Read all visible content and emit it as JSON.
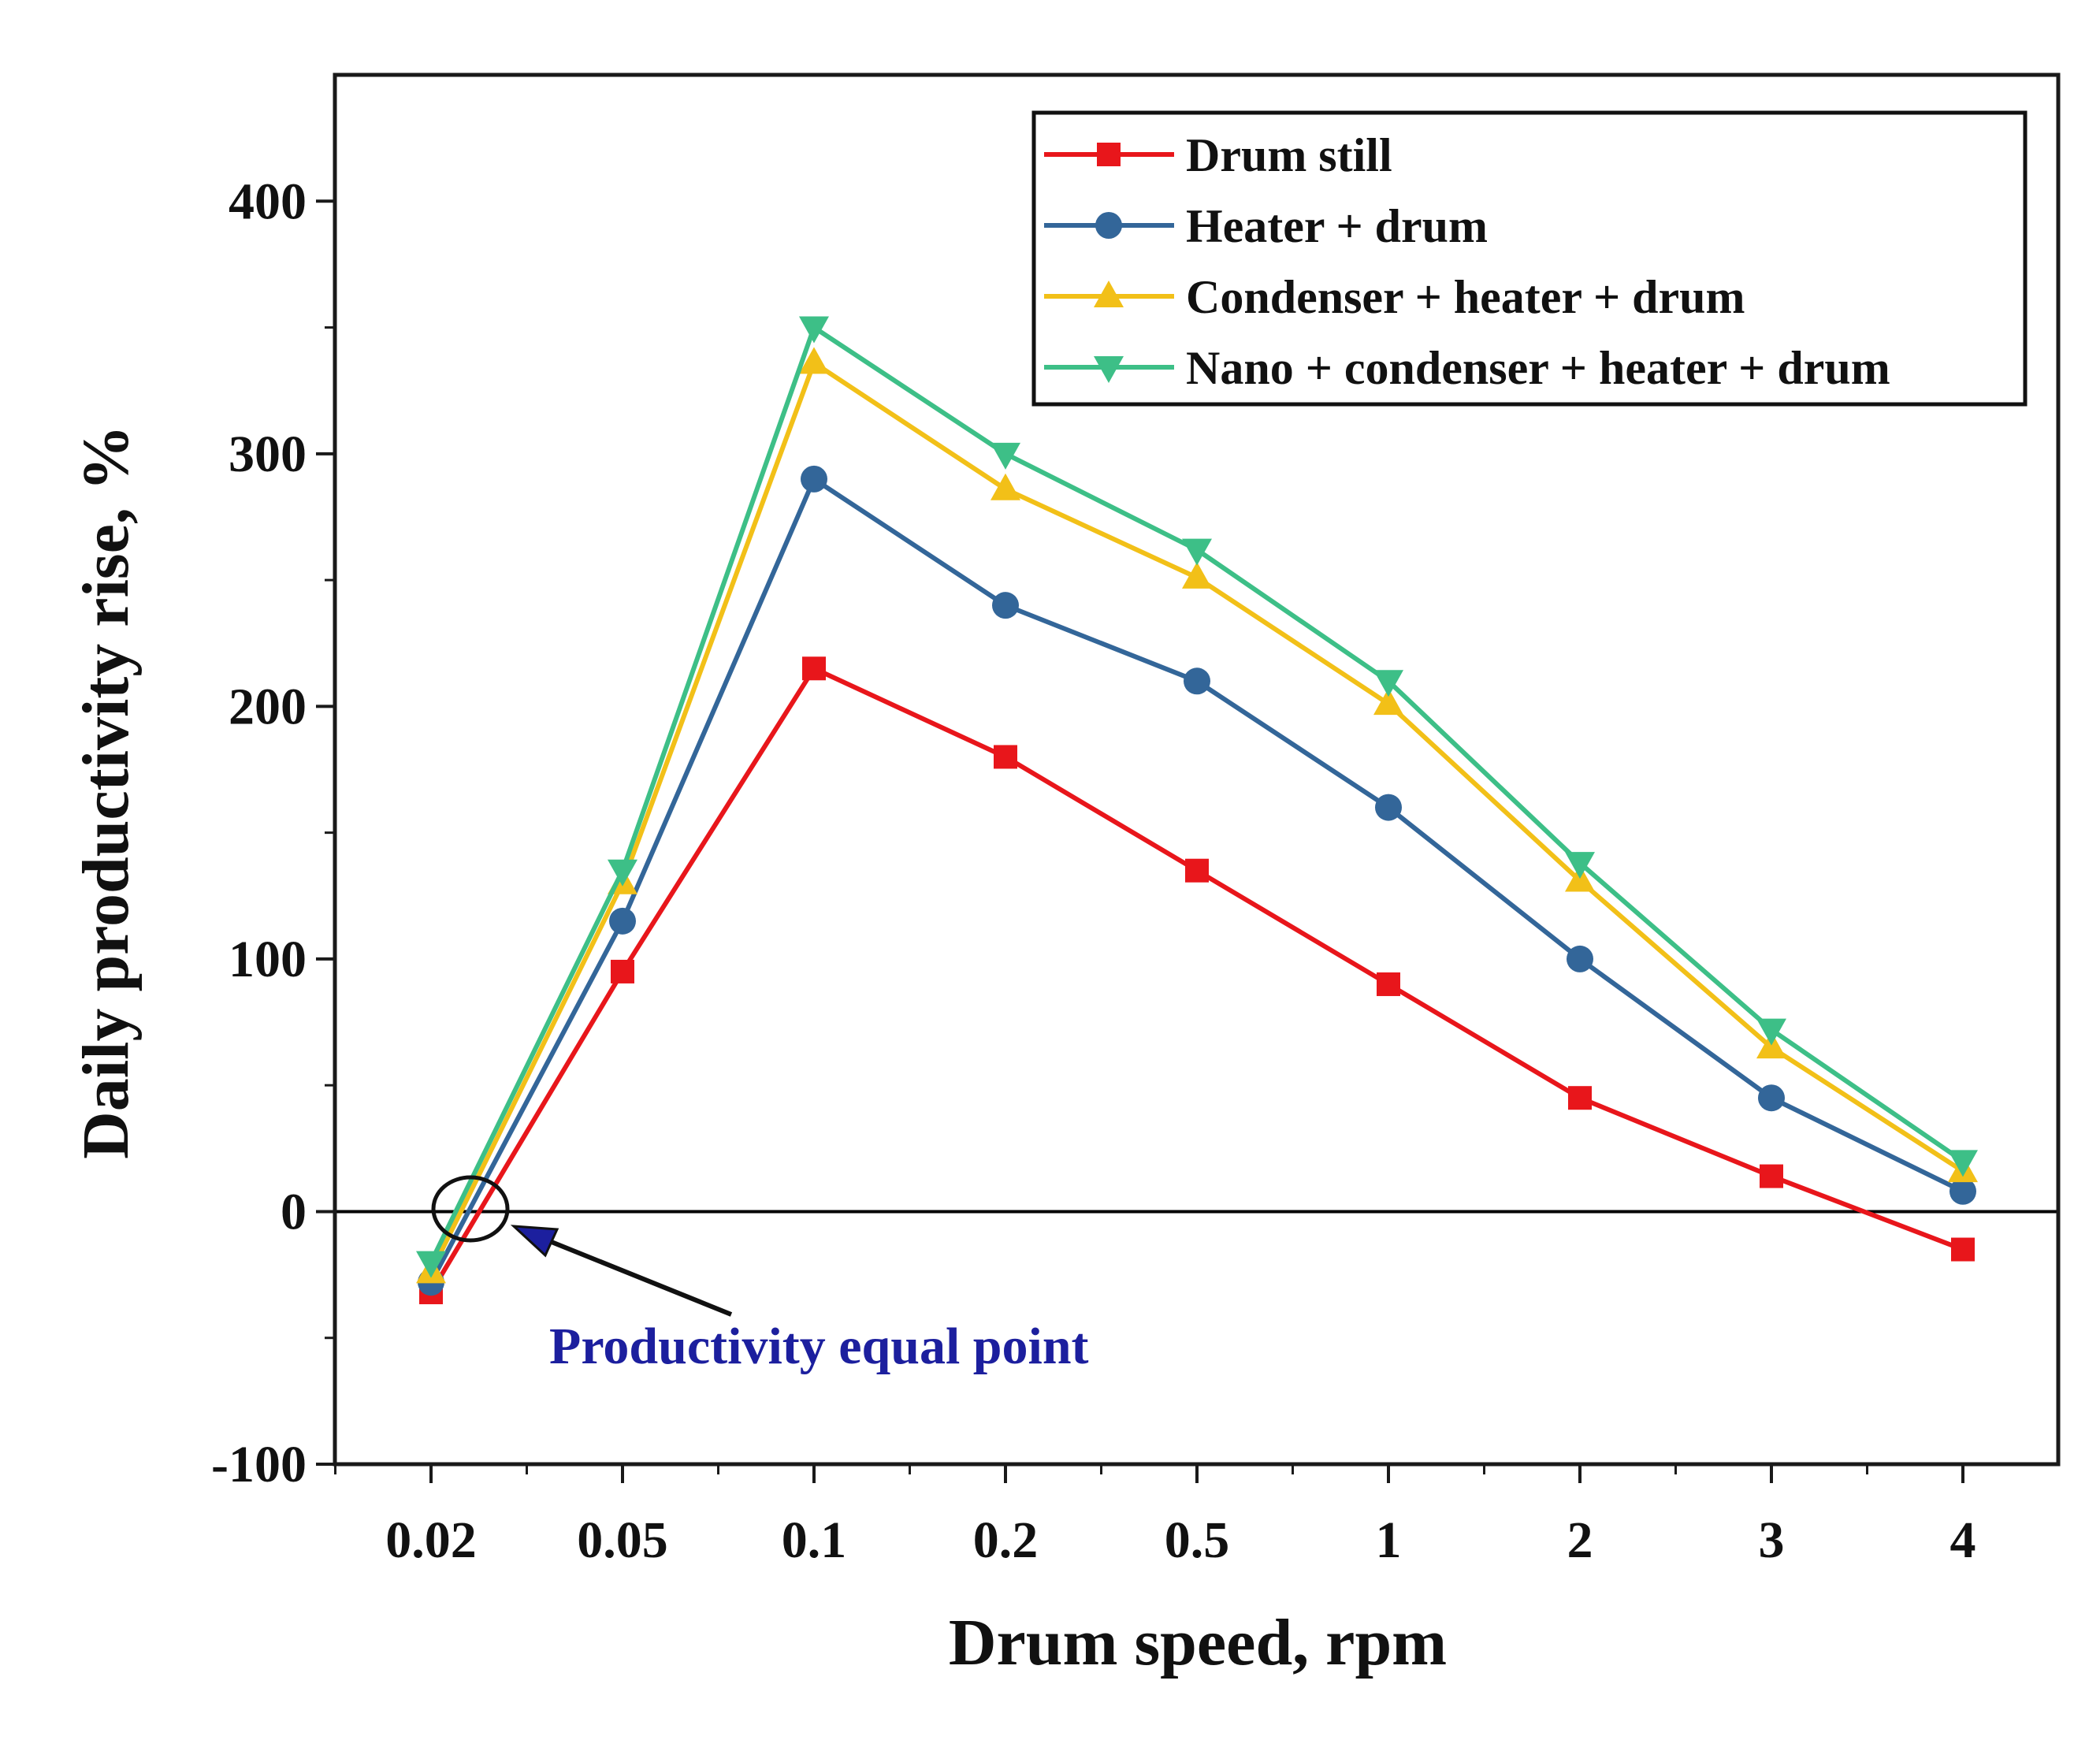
{
  "chart_data": {
    "type": "line",
    "title": "",
    "xlabel": "Drum speed, rpm",
    "ylabel": "Daily productivity rise, %",
    "categories": [
      "0.02",
      "0.05",
      "0.1",
      "0.2",
      "0.5",
      "1",
      "2",
      "3",
      "4"
    ],
    "ylim": [
      -100,
      450
    ],
    "yticks": [
      "-100",
      "0",
      "100",
      "200",
      "300",
      "400"
    ],
    "ytick_values": [
      -100,
      0,
      100,
      200,
      300,
      400
    ],
    "grid": false,
    "legend_position": "top-right",
    "series": [
      {
        "name": "Drum still",
        "marker": "square",
        "color": "#e8161b",
        "values": [
          -32,
          95,
          215,
          180,
          135,
          90,
          45,
          14,
          -15
        ]
      },
      {
        "name": "Heater + drum",
        "marker": "circle",
        "color": "#336699",
        "values": [
          -28,
          115,
          290,
          240,
          210,
          160,
          100,
          45,
          8
        ]
      },
      {
        "name": "Condenser + heater + drum",
        "marker": "triangle-up",
        "color": "#f2c018",
        "values": [
          -24,
          130,
          336,
          286,
          251,
          201,
          131,
          65,
          16
        ]
      },
      {
        "name": "Nano + condenser + heater + drum",
        "marker": "triangle-down",
        "color": "#3dbf87",
        "values": [
          -20,
          135,
          350,
          300,
          262,
          210,
          138,
          72,
          20
        ]
      }
    ],
    "annotations": [
      {
        "text": "Productivity equal point",
        "color": "#1c1f9e",
        "points_to_x_category": "0.02"
      }
    ]
  }
}
